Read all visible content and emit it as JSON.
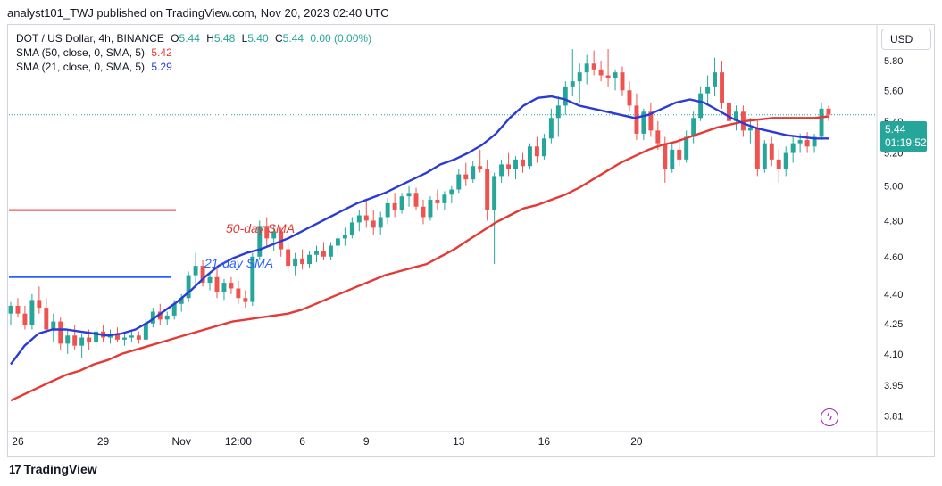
{
  "header": {
    "text": "analyst101_TWJ published on TradingView.com, Nov 20, 2023 02:40 UTC"
  },
  "legend": {
    "symbol": "DOT / US Dollar, 4h, BINANCE",
    "open_label": "O",
    "open": "5.44",
    "high_label": "H",
    "high": "5.48",
    "low_label": "L",
    "low": "5.40",
    "close_label": "C",
    "close": "5.44",
    "change": "0.00 (0.00%)",
    "sma50_label": "SMA (50, close, 0, SMA, 5)",
    "sma50_value": "5.42",
    "sma21_label": "SMA (21, close, 0, SMA, 5)",
    "sma21_value": "5.29"
  },
  "currency_button": "USD",
  "price_tag": {
    "price": "5.44",
    "countdown": "01:19:52"
  },
  "annotations": {
    "sma50_text": "50-day SMA",
    "sma21_text": "21-day SMA"
  },
  "footer": {
    "brand": "TradingView",
    "logo": "17"
  },
  "colors": {
    "up": "#26a69a",
    "down": "#ef5350",
    "sma50": "#e53935",
    "sma21": "#2a3bd8",
    "annotation50": "#e53935",
    "annotation21": "#2962ff"
  },
  "chart_data": {
    "type": "candlestick",
    "x_tick_labels": [
      "26",
      "29",
      "Nov",
      "12:00",
      "6",
      "9",
      "13",
      "16",
      "20"
    ],
    "y_tick_labels": [
      "5.80",
      "5.60",
      "5.40",
      "5.20",
      "5.00",
      "4.80",
      "4.60",
      "4.40",
      "4.25",
      "4.10",
      "3.95",
      "3.81"
    ],
    "y_scale": "log",
    "ylim": [
      3.74,
      6.05
    ],
    "current_price": 5.44,
    "candles": [
      {
        "o": 4.3,
        "h": 4.36,
        "l": 4.24,
        "c": 4.34
      },
      {
        "o": 4.34,
        "h": 4.38,
        "l": 4.28,
        "c": 4.3
      },
      {
        "o": 4.3,
        "h": 4.34,
        "l": 4.22,
        "c": 4.24
      },
      {
        "o": 4.24,
        "h": 4.4,
        "l": 4.22,
        "c": 4.37
      },
      {
        "o": 4.37,
        "h": 4.44,
        "l": 4.3,
        "c": 4.33
      },
      {
        "o": 4.33,
        "h": 4.38,
        "l": 4.2,
        "c": 4.22
      },
      {
        "o": 4.22,
        "h": 4.3,
        "l": 4.16,
        "c": 4.26
      },
      {
        "o": 4.26,
        "h": 4.28,
        "l": 4.12,
        "c": 4.15
      },
      {
        "o": 4.15,
        "h": 4.22,
        "l": 4.1,
        "c": 4.19
      },
      {
        "o": 4.19,
        "h": 4.24,
        "l": 4.12,
        "c": 4.14
      },
      {
        "o": 4.14,
        "h": 4.2,
        "l": 4.08,
        "c": 4.18
      },
      {
        "o": 4.18,
        "h": 4.22,
        "l": 4.12,
        "c": 4.16
      },
      {
        "o": 4.16,
        "h": 4.23,
        "l": 4.13,
        "c": 4.21
      },
      {
        "o": 4.21,
        "h": 4.24,
        "l": 4.16,
        "c": 4.18
      },
      {
        "o": 4.18,
        "h": 4.22,
        "l": 4.15,
        "c": 4.2
      },
      {
        "o": 4.2,
        "h": 4.23,
        "l": 4.16,
        "c": 4.17
      },
      {
        "o": 4.17,
        "h": 4.2,
        "l": 4.14,
        "c": 4.18
      },
      {
        "o": 4.18,
        "h": 4.22,
        "l": 4.16,
        "c": 4.19
      },
      {
        "o": 4.19,
        "h": 4.21,
        "l": 4.15,
        "c": 4.17
      },
      {
        "o": 4.17,
        "h": 4.27,
        "l": 4.16,
        "c": 4.25
      },
      {
        "o": 4.25,
        "h": 4.33,
        "l": 4.23,
        "c": 4.31
      },
      {
        "o": 4.31,
        "h": 4.35,
        "l": 4.24,
        "c": 4.27
      },
      {
        "o": 4.27,
        "h": 4.31,
        "l": 4.24,
        "c": 4.29
      },
      {
        "o": 4.29,
        "h": 4.37,
        "l": 4.27,
        "c": 4.35
      },
      {
        "o": 4.35,
        "h": 4.4,
        "l": 4.31,
        "c": 4.38
      },
      {
        "o": 4.38,
        "h": 4.52,
        "l": 4.36,
        "c": 4.5
      },
      {
        "o": 4.5,
        "h": 4.62,
        "l": 4.45,
        "c": 4.55
      },
      {
        "o": 4.55,
        "h": 4.58,
        "l": 4.44,
        "c": 4.46
      },
      {
        "o": 4.46,
        "h": 4.52,
        "l": 4.42,
        "c": 4.49
      },
      {
        "o": 4.49,
        "h": 4.55,
        "l": 4.38,
        "c": 4.41
      },
      {
        "o": 4.41,
        "h": 4.48,
        "l": 4.37,
        "c": 4.46
      },
      {
        "o": 4.46,
        "h": 4.49,
        "l": 4.4,
        "c": 4.43
      },
      {
        "o": 4.43,
        "h": 4.47,
        "l": 4.35,
        "c": 4.38
      },
      {
        "o": 4.38,
        "h": 4.42,
        "l": 4.33,
        "c": 4.36
      },
      {
        "o": 4.36,
        "h": 4.62,
        "l": 4.34,
        "c": 4.6
      },
      {
        "o": 4.6,
        "h": 4.8,
        "l": 4.58,
        "c": 4.77
      },
      {
        "o": 4.77,
        "h": 4.82,
        "l": 4.66,
        "c": 4.7
      },
      {
        "o": 4.7,
        "h": 4.78,
        "l": 4.63,
        "c": 4.74
      },
      {
        "o": 4.74,
        "h": 4.76,
        "l": 4.6,
        "c": 4.64
      },
      {
        "o": 4.64,
        "h": 4.68,
        "l": 4.52,
        "c": 4.55
      },
      {
        "o": 4.55,
        "h": 4.62,
        "l": 4.5,
        "c": 4.59
      },
      {
        "o": 4.59,
        "h": 4.64,
        "l": 4.53,
        "c": 4.56
      },
      {
        "o": 4.56,
        "h": 4.63,
        "l": 4.54,
        "c": 4.61
      },
      {
        "o": 4.61,
        "h": 4.66,
        "l": 4.57,
        "c": 4.63
      },
      {
        "o": 4.63,
        "h": 4.68,
        "l": 4.58,
        "c": 4.6
      },
      {
        "o": 4.6,
        "h": 4.68,
        "l": 4.58,
        "c": 4.66
      },
      {
        "o": 4.66,
        "h": 4.72,
        "l": 4.62,
        "c": 4.7
      },
      {
        "o": 4.7,
        "h": 4.76,
        "l": 4.66,
        "c": 4.72
      },
      {
        "o": 4.72,
        "h": 4.82,
        "l": 4.7,
        "c": 4.79
      },
      {
        "o": 4.79,
        "h": 4.86,
        "l": 4.74,
        "c": 4.83
      },
      {
        "o": 4.83,
        "h": 4.92,
        "l": 4.76,
        "c": 4.8
      },
      {
        "o": 4.8,
        "h": 4.86,
        "l": 4.72,
        "c": 4.76
      },
      {
        "o": 4.76,
        "h": 4.85,
        "l": 4.72,
        "c": 4.82
      },
      {
        "o": 4.82,
        "h": 4.93,
        "l": 4.78,
        "c": 4.9
      },
      {
        "o": 4.9,
        "h": 4.96,
        "l": 4.82,
        "c": 4.86
      },
      {
        "o": 4.86,
        "h": 4.96,
        "l": 4.84,
        "c": 4.94
      },
      {
        "o": 4.94,
        "h": 5.0,
        "l": 4.88,
        "c": 4.96
      },
      {
        "o": 4.96,
        "h": 4.99,
        "l": 4.86,
        "c": 4.88
      },
      {
        "o": 4.88,
        "h": 4.92,
        "l": 4.78,
        "c": 4.82
      },
      {
        "o": 4.82,
        "h": 4.94,
        "l": 4.8,
        "c": 4.92
      },
      {
        "o": 4.92,
        "h": 4.98,
        "l": 4.86,
        "c": 4.9
      },
      {
        "o": 4.9,
        "h": 4.97,
        "l": 4.86,
        "c": 4.95
      },
      {
        "o": 4.95,
        "h": 5.0,
        "l": 4.9,
        "c": 4.98
      },
      {
        "o": 4.98,
        "h": 5.1,
        "l": 4.96,
        "c": 5.07
      },
      {
        "o": 5.07,
        "h": 5.14,
        "l": 5.0,
        "c": 5.04
      },
      {
        "o": 5.04,
        "h": 5.15,
        "l": 5.02,
        "c": 5.12
      },
      {
        "o": 5.12,
        "h": 5.22,
        "l": 5.08,
        "c": 5.1
      },
      {
        "o": 5.1,
        "h": 5.16,
        "l": 4.8,
        "c": 4.86
      },
      {
        "o": 4.86,
        "h": 5.08,
        "l": 4.56,
        "c": 5.06
      },
      {
        "o": 5.06,
        "h": 5.16,
        "l": 5.02,
        "c": 5.13
      },
      {
        "o": 5.13,
        "h": 5.2,
        "l": 5.06,
        "c": 5.1
      },
      {
        "o": 5.1,
        "h": 5.18,
        "l": 5.04,
        "c": 5.16
      },
      {
        "o": 5.16,
        "h": 5.2,
        "l": 5.08,
        "c": 5.12
      },
      {
        "o": 5.12,
        "h": 5.26,
        "l": 5.1,
        "c": 5.24
      },
      {
        "o": 5.24,
        "h": 5.3,
        "l": 5.14,
        "c": 5.18
      },
      {
        "o": 5.18,
        "h": 5.32,
        "l": 5.16,
        "c": 5.29
      },
      {
        "o": 5.29,
        "h": 5.48,
        "l": 5.26,
        "c": 5.42
      },
      {
        "o": 5.42,
        "h": 5.56,
        "l": 5.3,
        "c": 5.5
      },
      {
        "o": 5.5,
        "h": 5.66,
        "l": 5.44,
        "c": 5.62
      },
      {
        "o": 5.62,
        "h": 5.88,
        "l": 5.56,
        "c": 5.66
      },
      {
        "o": 5.66,
        "h": 5.78,
        "l": 5.52,
        "c": 5.72
      },
      {
        "o": 5.72,
        "h": 5.84,
        "l": 5.64,
        "c": 5.78
      },
      {
        "o": 5.78,
        "h": 5.87,
        "l": 5.7,
        "c": 5.74
      },
      {
        "o": 5.74,
        "h": 5.8,
        "l": 5.66,
        "c": 5.7
      },
      {
        "o": 5.7,
        "h": 5.88,
        "l": 5.62,
        "c": 5.68
      },
      {
        "o": 5.68,
        "h": 5.74,
        "l": 5.6,
        "c": 5.72
      },
      {
        "o": 5.72,
        "h": 5.76,
        "l": 5.56,
        "c": 5.6
      },
      {
        "o": 5.6,
        "h": 5.66,
        "l": 5.46,
        "c": 5.5
      },
      {
        "o": 5.5,
        "h": 5.58,
        "l": 5.28,
        "c": 5.32
      },
      {
        "o": 5.32,
        "h": 5.48,
        "l": 5.28,
        "c": 5.46
      },
      {
        "o": 5.46,
        "h": 5.52,
        "l": 5.3,
        "c": 5.34
      },
      {
        "o": 5.34,
        "h": 5.4,
        "l": 5.22,
        "c": 5.26
      },
      {
        "o": 5.26,
        "h": 5.3,
        "l": 5.02,
        "c": 5.1
      },
      {
        "o": 5.1,
        "h": 5.26,
        "l": 5.08,
        "c": 5.22
      },
      {
        "o": 5.22,
        "h": 5.3,
        "l": 5.12,
        "c": 5.16
      },
      {
        "o": 5.16,
        "h": 5.34,
        "l": 5.14,
        "c": 5.3
      },
      {
        "o": 5.3,
        "h": 5.46,
        "l": 5.26,
        "c": 5.42
      },
      {
        "o": 5.42,
        "h": 5.62,
        "l": 5.4,
        "c": 5.58
      },
      {
        "o": 5.58,
        "h": 5.7,
        "l": 5.5,
        "c": 5.62
      },
      {
        "o": 5.62,
        "h": 5.82,
        "l": 5.56,
        "c": 5.72
      },
      {
        "o": 5.72,
        "h": 5.8,
        "l": 5.48,
        "c": 5.52
      },
      {
        "o": 5.52,
        "h": 5.56,
        "l": 5.36,
        "c": 5.4
      },
      {
        "o": 5.4,
        "h": 5.5,
        "l": 5.34,
        "c": 5.46
      },
      {
        "o": 5.46,
        "h": 5.5,
        "l": 5.3,
        "c": 5.34
      },
      {
        "o": 5.34,
        "h": 5.42,
        "l": 5.26,
        "c": 5.36
      },
      {
        "o": 5.36,
        "h": 5.4,
        "l": 5.06,
        "c": 5.1
      },
      {
        "o": 5.1,
        "h": 5.28,
        "l": 5.08,
        "c": 5.26
      },
      {
        "o": 5.26,
        "h": 5.3,
        "l": 5.12,
        "c": 5.16
      },
      {
        "o": 5.16,
        "h": 5.22,
        "l": 5.02,
        "c": 5.1
      },
      {
        "o": 5.1,
        "h": 5.24,
        "l": 5.06,
        "c": 5.2
      },
      {
        "o": 5.2,
        "h": 5.3,
        "l": 5.14,
        "c": 5.26
      },
      {
        "o": 5.26,
        "h": 5.32,
        "l": 5.2,
        "c": 5.28
      },
      {
        "o": 5.28,
        "h": 5.33,
        "l": 5.2,
        "c": 5.24
      },
      {
        "o": 5.24,
        "h": 5.32,
        "l": 5.2,
        "c": 5.3
      },
      {
        "o": 5.3,
        "h": 5.52,
        "l": 5.28,
        "c": 5.48
      },
      {
        "o": 5.48,
        "h": 5.5,
        "l": 5.4,
        "c": 5.44
      }
    ],
    "sma50": [
      3.88,
      3.91,
      3.94,
      3.97,
      4.0,
      4.02,
      4.05,
      4.07,
      4.1,
      4.12,
      4.14,
      4.16,
      4.18,
      4.2,
      4.22,
      4.24,
      4.26,
      4.27,
      4.28,
      4.29,
      4.3,
      4.32,
      4.35,
      4.38,
      4.41,
      4.44,
      4.47,
      4.5,
      4.52,
      4.54,
      4.56,
      4.6,
      4.64,
      4.69,
      4.74,
      4.79,
      4.83,
      4.87,
      4.89,
      4.92,
      4.95,
      4.99,
      5.04,
      5.09,
      5.14,
      5.18,
      5.22,
      5.25,
      5.27,
      5.3,
      5.33,
      5.36,
      5.38,
      5.4,
      5.41,
      5.42,
      5.42,
      5.42,
      5.42,
      5.43
    ],
    "sma21": [
      4.05,
      4.14,
      4.2,
      4.22,
      4.22,
      4.21,
      4.2,
      4.19,
      4.2,
      4.22,
      4.26,
      4.31,
      4.36,
      4.42,
      4.49,
      4.55,
      4.59,
      4.62,
      4.64,
      4.67,
      4.7,
      4.74,
      4.78,
      4.82,
      4.86,
      4.9,
      4.93,
      4.96,
      5.0,
      5.04,
      5.08,
      5.13,
      5.16,
      5.2,
      5.25,
      5.32,
      5.42,
      5.5,
      5.55,
      5.56,
      5.54,
      5.5,
      5.48,
      5.46,
      5.44,
      5.42,
      5.44,
      5.48,
      5.52,
      5.54,
      5.52,
      5.47,
      5.42,
      5.38,
      5.35,
      5.33,
      5.31,
      5.3,
      5.29,
      5.29
    ],
    "horizontal_lines": [
      {
        "price": 4.86,
        "color": "#e53935"
      },
      {
        "price": 4.49,
        "color": "#2962ff"
      }
    ]
  }
}
